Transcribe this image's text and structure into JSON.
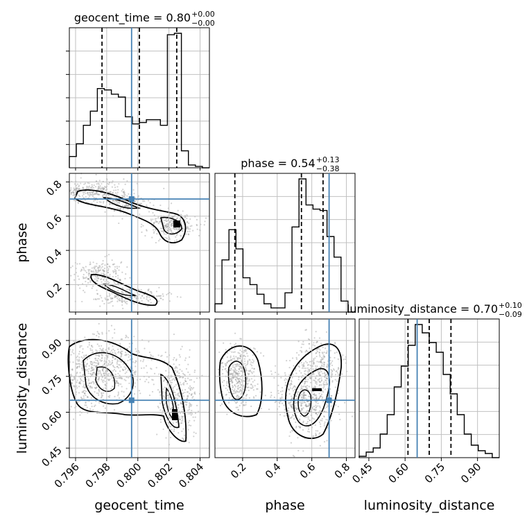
{
  "chart_data": {
    "type": "corner",
    "parameters": [
      "geocent_time",
      "phase",
      "luminosity_distance"
    ],
    "truths": {
      "geocent_time": 0.7996,
      "phase": 0.7,
      "luminosity_distance": 0.65
    },
    "colors": {
      "truth": "#4682b4",
      "hist": "#000000",
      "grid": "#c0c0c0",
      "points": "#9a9a9a"
    },
    "titles": [
      {
        "name": "geocent_time",
        "median": "0.80",
        "plus": "+0.00",
        "minus": "−0.00"
      },
      {
        "name": "phase",
        "median": "0.54",
        "plus": "+0.13",
        "minus": "−0.38"
      },
      {
        "name": "luminosity_distance",
        "median": "0.70",
        "plus": "+0.10",
        "minus": "−0.09"
      }
    ],
    "ranges": {
      "geocent_time": [
        0.7956,
        0.8046
      ],
      "phase": [
        0.04,
        0.85
      ],
      "luminosity_distance": [
        0.41,
        0.99
      ]
    },
    "ticks": {
      "geocent_time": [
        "0.796",
        "0.798",
        "0.800",
        "0.802",
        "0.804"
      ],
      "phase": [
        "0.2",
        "0.4",
        "0.6",
        "0.8"
      ],
      "luminosity_distance": [
        "0.45",
        "0.60",
        "0.75",
        "0.90"
      ]
    },
    "histograms": {
      "geocent_time": {
        "edges": [
          0.7956,
          0.79605,
          0.7965,
          0.79695,
          0.7974,
          0.79785,
          0.7983,
          0.79875,
          0.7992,
          0.79965,
          0.8001,
          0.80055,
          0.801,
          0.80145,
          0.8019,
          0.80235,
          0.8028,
          0.80325,
          0.8037,
          0.80415,
          0.8046
        ],
        "counts": [
          0.08,
          0.17,
          0.3,
          0.4,
          0.56,
          0.55,
          0.52,
          0.5,
          0.36,
          0.31,
          0.32,
          0.34,
          0.34,
          0.3,
          0.94,
          0.95,
          0.12,
          0.02,
          0.01,
          0.0
        ],
        "quantiles": [
          0.7977,
          0.8001,
          0.8025
        ]
      },
      "phase": {
        "edges": [
          0.04,
          0.0805,
          0.121,
          0.1615,
          0.202,
          0.2425,
          0.283,
          0.3235,
          0.364,
          0.4045,
          0.445,
          0.4855,
          0.526,
          0.5665,
          0.607,
          0.6475,
          0.688,
          0.7285,
          0.769,
          0.8095,
          0.85
        ],
        "counts": [
          0.06,
          0.38,
          0.6,
          0.46,
          0.25,
          0.2,
          0.13,
          0.06,
          0.03,
          0.03,
          0.14,
          0.62,
          0.97,
          0.78,
          0.75,
          0.74,
          0.55,
          0.4,
          0.08,
          0.0
        ],
        "quantiles": [
          0.155,
          0.54,
          0.665
        ]
      },
      "luminosity_distance": {
        "edges": [
          0.41,
          0.439,
          0.468,
          0.497,
          0.526,
          0.555,
          0.584,
          0.613,
          0.642,
          0.671,
          0.7,
          0.729,
          0.758,
          0.787,
          0.816,
          0.845,
          0.874,
          0.903,
          0.932,
          0.961,
          0.99
        ],
        "counts": [
          0.01,
          0.04,
          0.07,
          0.17,
          0.31,
          0.51,
          0.66,
          0.81,
          0.96,
          0.9,
          0.83,
          0.76,
          0.6,
          0.46,
          0.31,
          0.17,
          0.09,
          0.05,
          0.03,
          0.0
        ],
        "quantiles": [
          0.612,
          0.7,
          0.79
        ]
      }
    },
    "grid": true
  }
}
